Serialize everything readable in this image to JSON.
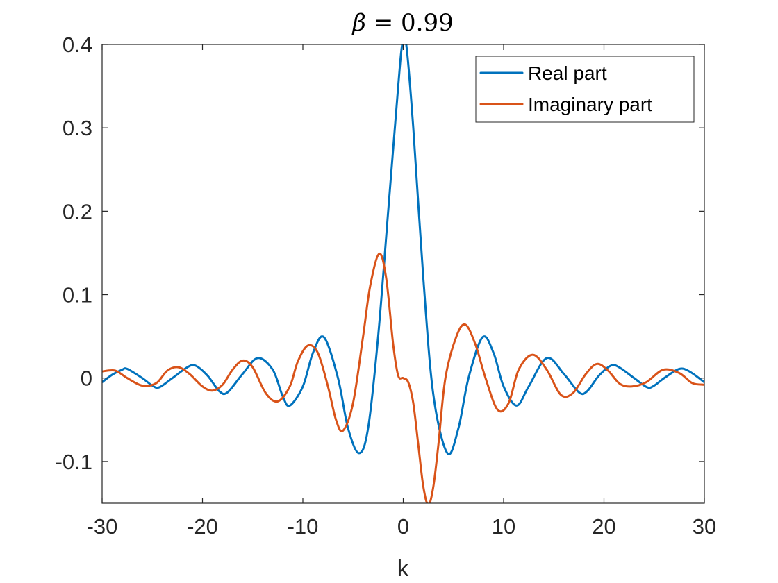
{
  "chart_data": {
    "type": "line",
    "title_symbol": "β",
    "title_rest": " = 0.99",
    "xlabel": "k",
    "ylabel": "",
    "xlim": [
      -30,
      30
    ],
    "ylim": [
      -0.15,
      0.4
    ],
    "xticks": [
      -30,
      -20,
      -10,
      0,
      10,
      20,
      30
    ],
    "xtick_labels": [
      "-30",
      "-20",
      "-10",
      "0",
      "10",
      "20",
      "30"
    ],
    "yticks": [
      -0.1,
      0,
      0.1,
      0.2,
      0.3,
      0.4
    ],
    "ytick_labels": [
      "-0.1",
      "0",
      "0.1",
      "0.2",
      "0.3",
      "0.4"
    ],
    "grid": false,
    "legend_position": "top-right",
    "colors": {
      "real": "#0072BD",
      "imag": "#D95319",
      "axes": "#262626"
    },
    "series": [
      {
        "name": "Real part",
        "x": [
          -30,
          -29,
          -28,
          -27.5,
          -26,
          -25,
          -24.3,
          -23,
          -21.5,
          -20.7,
          -19.5,
          -18.3,
          -17.5,
          -16,
          -14.5,
          -13,
          -12,
          -11.3,
          -10,
          -9,
          -7.9,
          -6.5,
          -5.5,
          -4.4,
          -3.5,
          -2.5,
          -1.5,
          -0.5,
          -0.1,
          0.3,
          1,
          2,
          3,
          4.4,
          5.5,
          6.5,
          7.9,
          9,
          10,
          11.3,
          12.5,
          14.3,
          16,
          17.5,
          18.3,
          19.5,
          20.7,
          21.5,
          23,
          24.3,
          25,
          26,
          27.5,
          28.5,
          30
        ],
        "values": [
          -0.005,
          0.004,
          0.01,
          0.011,
          0.0,
          -0.009,
          -0.011,
          0.0,
          0.013,
          0.015,
          0.003,
          -0.016,
          -0.017,
          0.005,
          0.024,
          0.01,
          -0.022,
          -0.033,
          -0.01,
          0.03,
          0.049,
          0.0,
          -0.06,
          -0.09,
          -0.06,
          0.05,
          0.2,
          0.35,
          0.4,
          0.4,
          0.3,
          0.12,
          -0.02,
          -0.09,
          -0.06,
          0.0,
          0.049,
          0.03,
          -0.01,
          -0.033,
          -0.01,
          0.024,
          0.005,
          -0.017,
          -0.016,
          0.003,
          0.015,
          0.013,
          0.0,
          -0.011,
          -0.009,
          0.0,
          0.011,
          0.008,
          -0.005
        ]
      },
      {
        "name": "Imaginary part",
        "x": [
          -30,
          -28.7,
          -27.5,
          -26,
          -24.6,
          -23.5,
          -22.4,
          -21.3,
          -20,
          -19,
          -18,
          -17,
          -16,
          -15,
          -13.7,
          -12.5,
          -11.3,
          -10.5,
          -9.5,
          -8.5,
          -7.5,
          -6.7,
          -6,
          -5,
          -4,
          -3.3,
          -2.4,
          -1.7,
          -1,
          -0.5,
          0,
          0.5,
          1,
          1.5,
          2,
          2.5,
          3,
          3.5,
          4.2,
          5.3,
          6.2,
          7.2,
          8.2,
          9.4,
          10.5,
          11.5,
          12.9,
          14.3,
          15.7,
          16.9,
          18.2,
          19.3,
          20.4,
          21.6,
          22.8,
          24.2,
          25.9,
          27.5,
          28.8,
          30
        ],
        "values": [
          0.008,
          0.009,
          0.0,
          -0.009,
          -0.006,
          0.009,
          0.013,
          0.005,
          -0.01,
          -0.015,
          -0.008,
          0.01,
          0.021,
          0.013,
          -0.018,
          -0.028,
          -0.01,
          0.02,
          0.039,
          0.03,
          -0.01,
          -0.05,
          -0.063,
          -0.03,
          0.05,
          0.11,
          0.149,
          0.12,
          0.04,
          0.003,
          0.0,
          -0.005,
          -0.03,
          -0.08,
          -0.13,
          -0.152,
          -0.13,
          -0.08,
          0.0,
          0.05,
          0.064,
          0.04,
          0.0,
          -0.038,
          -0.03,
          0.01,
          0.028,
          0.01,
          -0.02,
          -0.018,
          0.005,
          0.017,
          0.009,
          -0.007,
          -0.01,
          -0.005,
          0.01,
          0.006,
          -0.006,
          -0.008
        ]
      }
    ]
  }
}
